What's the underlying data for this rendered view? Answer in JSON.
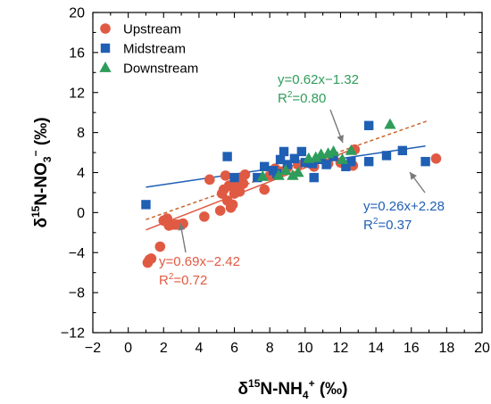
{
  "chart_data": {
    "type": "scatter",
    "xlabel": {
      "main": "δ",
      "sup1": "15",
      "mid": "N-NH",
      "sub": "4",
      "sup2": "+",
      "unit": " (‰)"
    },
    "ylabel": {
      "main": "δ",
      "sup1": "15",
      "mid": "N-NO",
      "sub": "3",
      "sup2": "−",
      "unit": " (‰)"
    },
    "xlim": [
      -2,
      20
    ],
    "ylim": [
      -12,
      20
    ],
    "xticks": [
      "−2",
      "0",
      "2",
      "4",
      "6",
      "8",
      "10",
      "12",
      "14",
      "16",
      "18",
      "20"
    ],
    "yticks": [
      "−12",
      "−8",
      "−4",
      "0",
      "4",
      "8",
      "12",
      "16",
      "20"
    ],
    "legend_position": "top-left",
    "series": [
      {
        "name": "Upstream",
        "marker": "circle",
        "color": "#e05a43",
        "points": [
          [
            1.1,
            -5.0
          ],
          [
            1.2,
            -4.7
          ],
          [
            1.3,
            -4.6
          ],
          [
            1.8,
            -3.4
          ],
          [
            2.0,
            -0.8
          ],
          [
            2.2,
            -0.6
          ],
          [
            2.3,
            -1.3
          ],
          [
            2.5,
            -1.2
          ],
          [
            2.7,
            -1.2
          ],
          [
            2.9,
            -1.2
          ],
          [
            3.1,
            -1.1
          ],
          [
            4.3,
            -0.4
          ],
          [
            4.6,
            3.3
          ],
          [
            5.2,
            0.2
          ],
          [
            5.3,
            1.9
          ],
          [
            5.4,
            2.3
          ],
          [
            5.5,
            3.7
          ],
          [
            5.6,
            1.2
          ],
          [
            5.7,
            2.7
          ],
          [
            5.8,
            0.5
          ],
          [
            5.9,
            0.8
          ],
          [
            6.0,
            1.9
          ],
          [
            6.0,
            3.0
          ],
          [
            6.1,
            2.4
          ],
          [
            6.2,
            3.4
          ],
          [
            6.3,
            2.1
          ],
          [
            6.5,
            2.9
          ],
          [
            6.6,
            3.8
          ],
          [
            7.7,
            2.3
          ],
          [
            8.0,
            3.7
          ],
          [
            8.3,
            4.4
          ],
          [
            8.6,
            4.1
          ],
          [
            9.0,
            4.5
          ],
          [
            9.6,
            4.8
          ],
          [
            10.5,
            4.6
          ],
          [
            11.3,
            4.9
          ],
          [
            12.0,
            5.0
          ],
          [
            12.7,
            4.7
          ],
          [
            12.8,
            6.3
          ],
          [
            17.4,
            5.4
          ]
        ]
      },
      {
        "name": "Midstream",
        "marker": "square",
        "color": "#1f5fb4",
        "points": [
          [
            1.0,
            0.8
          ],
          [
            5.6,
            5.6
          ],
          [
            6.0,
            3.5
          ],
          [
            7.3,
            3.5
          ],
          [
            7.7,
            4.6
          ],
          [
            8.2,
            4.2
          ],
          [
            8.4,
            3.9
          ],
          [
            8.6,
            5.3
          ],
          [
            8.8,
            6.1
          ],
          [
            9.0,
            4.8
          ],
          [
            9.4,
            5.4
          ],
          [
            9.8,
            6.1
          ],
          [
            10.0,
            5.0
          ],
          [
            10.4,
            4.9
          ],
          [
            10.5,
            3.5
          ],
          [
            10.9,
            5.3
          ],
          [
            11.2,
            4.8
          ],
          [
            11.6,
            5.6
          ],
          [
            12.3,
            4.6
          ],
          [
            12.6,
            5.1
          ],
          [
            13.6,
            8.7
          ],
          [
            13.6,
            5.1
          ],
          [
            14.6,
            5.7
          ],
          [
            15.5,
            6.2
          ],
          [
            16.8,
            5.1
          ]
        ]
      },
      {
        "name": "Downstream",
        "marker": "triangle",
        "color": "#2e9c5a",
        "points": [
          [
            7.6,
            3.6
          ],
          [
            8.5,
            3.7
          ],
          [
            8.9,
            4.2
          ],
          [
            9.3,
            3.7
          ],
          [
            9.6,
            4.0
          ],
          [
            10.2,
            5.4
          ],
          [
            10.6,
            5.5
          ],
          [
            10.9,
            5.8
          ],
          [
            11.3,
            5.9
          ],
          [
            11.6,
            6.1
          ],
          [
            12.1,
            5.3
          ],
          [
            12.6,
            6.2
          ],
          [
            14.8,
            8.8
          ]
        ]
      }
    ],
    "fits": [
      {
        "series": "Downstream",
        "color": "#2e9c5a",
        "line_color": "#c8642a",
        "dashed": true,
        "slope": 0.62,
        "intercept": -1.32,
        "x_range": [
          1.0,
          17.0
        ],
        "equation": "y=0.62x−1.32",
        "r2_label": "R",
        "r2_sup": "2",
        "r2_value": "=0.80"
      },
      {
        "series": "Midstream",
        "color": "#1f5fb4",
        "line_color": "#1f5fb4",
        "dashed": false,
        "slope": 0.26,
        "intercept": 2.28,
        "x_range": [
          1.0,
          16.8
        ],
        "equation": "y=0.26x+2.28",
        "r2_label": "R",
        "r2_sup": "2",
        "r2_value": "=0.37"
      },
      {
        "series": "Upstream",
        "color": "#e05a43",
        "line_color": "#e05a43",
        "dashed": false,
        "slope": 0.69,
        "intercept": -2.42,
        "x_range": [
          1.0,
          13.0
        ],
        "equation": "y=0.69x−2.42",
        "r2_label": "R",
        "r2_sup": "2",
        "r2_value": "=0.72"
      }
    ]
  }
}
